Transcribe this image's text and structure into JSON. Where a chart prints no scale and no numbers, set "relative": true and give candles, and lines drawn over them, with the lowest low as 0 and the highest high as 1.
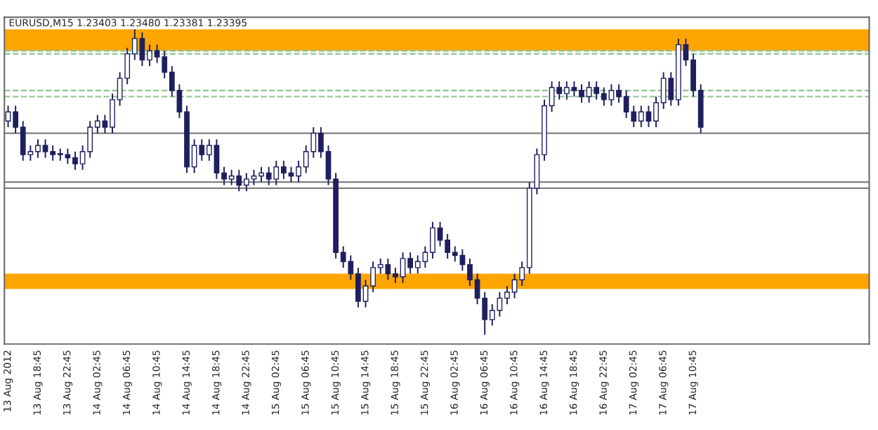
{
  "chart_data": {
    "type": "candlestick",
    "title": "EURUSD,M15 1.23403 1.23480 1.23381 1.23395",
    "relative": true,
    "color": "#1f1f5f",
    "grid": false,
    "categories": [
      "13 Aug 2012",
      null,
      null,
      null,
      "13 Aug 18:45",
      null,
      null,
      null,
      "13 Aug 22:45",
      null,
      null,
      null,
      "14 Aug 02:45",
      null,
      null,
      null,
      "14 Aug 06:45",
      null,
      null,
      null,
      "14 Aug 10:45",
      null,
      null,
      null,
      "14 Aug 14:45",
      null,
      null,
      null,
      "14 Aug 18:45",
      null,
      null,
      null,
      "14 Aug 22:45",
      null,
      null,
      null,
      "15 Aug 02:45",
      null,
      null,
      null,
      "15 Aug 06:45",
      null,
      null,
      null,
      "15 Aug 10:45",
      null,
      null,
      null,
      "15 Aug 14:45",
      null,
      null,
      null,
      "15 Aug 18:45",
      null,
      null,
      null,
      "15 Aug 22:45",
      null,
      null,
      null,
      "16 Aug 02:45",
      null,
      null,
      null,
      "16 Aug 06:45",
      null,
      null,
      null,
      "16 Aug 10:45",
      null,
      null,
      null,
      "16 Aug 14:45",
      null,
      null,
      null,
      "16 Aug 18:45",
      null,
      null,
      null,
      "16 Aug 22:45",
      null,
      null,
      null,
      "17 Aug 02:45",
      null,
      null,
      null,
      "17 Aug 06:45",
      null,
      null,
      null,
      "17 Aug 10:45",
      null
    ],
    "ohlc": [
      [
        0.7,
        0.75,
        0.68,
        0.73
      ],
      [
        0.73,
        0.75,
        0.66,
        0.68
      ],
      [
        0.68,
        0.7,
        0.57,
        0.59
      ],
      [
        0.59,
        0.62,
        0.57,
        0.6
      ],
      [
        0.6,
        0.64,
        0.58,
        0.62
      ],
      [
        0.62,
        0.64,
        0.58,
        0.6
      ],
      [
        0.6,
        0.62,
        0.57,
        0.59
      ],
      [
        0.59,
        0.61,
        0.57,
        0.59
      ],
      [
        0.59,
        0.61,
        0.56,
        0.58
      ],
      [
        0.58,
        0.6,
        0.54,
        0.56
      ],
      [
        0.56,
        0.62,
        0.54,
        0.6
      ],
      [
        0.6,
        0.7,
        0.58,
        0.68
      ],
      [
        0.68,
        0.72,
        0.66,
        0.7
      ],
      [
        0.7,
        0.72,
        0.66,
        0.68
      ],
      [
        0.68,
        0.79,
        0.66,
        0.77
      ],
      [
        0.77,
        0.86,
        0.75,
        0.84
      ],
      [
        0.84,
        0.94,
        0.82,
        0.92
      ],
      [
        0.92,
        1.0,
        0.9,
        0.97
      ],
      [
        0.97,
        0.99,
        0.88,
        0.9
      ],
      [
        0.9,
        0.95,
        0.88,
        0.93
      ],
      [
        0.93,
        0.95,
        0.89,
        0.91
      ],
      [
        0.91,
        0.93,
        0.84,
        0.86
      ],
      [
        0.86,
        0.88,
        0.78,
        0.8
      ],
      [
        0.8,
        0.82,
        0.71,
        0.73
      ],
      [
        0.73,
        0.75,
        0.53,
        0.55
      ],
      [
        0.55,
        0.64,
        0.53,
        0.62
      ],
      [
        0.62,
        0.64,
        0.57,
        0.59
      ],
      [
        0.59,
        0.64,
        0.57,
        0.62
      ],
      [
        0.62,
        0.64,
        0.51,
        0.53
      ],
      [
        0.53,
        0.55,
        0.49,
        0.51
      ],
      [
        0.51,
        0.54,
        0.49,
        0.52
      ],
      [
        0.52,
        0.54,
        0.47,
        0.49
      ],
      [
        0.49,
        0.53,
        0.47,
        0.51
      ],
      [
        0.51,
        0.54,
        0.49,
        0.52
      ],
      [
        0.52,
        0.55,
        0.5,
        0.53
      ],
      [
        0.53,
        0.55,
        0.49,
        0.51
      ],
      [
        0.51,
        0.57,
        0.49,
        0.55
      ],
      [
        0.55,
        0.57,
        0.51,
        0.53
      ],
      [
        0.53,
        0.55,
        0.5,
        0.52
      ],
      [
        0.52,
        0.57,
        0.5,
        0.55
      ],
      [
        0.55,
        0.62,
        0.53,
        0.6
      ],
      [
        0.6,
        0.68,
        0.58,
        0.66
      ],
      [
        0.66,
        0.68,
        0.58,
        0.6
      ],
      [
        0.6,
        0.62,
        0.49,
        0.51
      ],
      [
        0.51,
        0.53,
        0.25,
        0.27
      ],
      [
        0.27,
        0.29,
        0.22,
        0.24
      ],
      [
        0.24,
        0.26,
        0.18,
        0.2
      ],
      [
        0.2,
        0.22,
        0.09,
        0.11
      ],
      [
        0.11,
        0.18,
        0.09,
        0.16
      ],
      [
        0.16,
        0.24,
        0.14,
        0.22
      ],
      [
        0.22,
        0.25,
        0.2,
        0.23
      ],
      [
        0.23,
        0.25,
        0.18,
        0.2
      ],
      [
        0.2,
        0.22,
        0.17,
        0.19
      ],
      [
        0.19,
        0.27,
        0.17,
        0.25
      ],
      [
        0.25,
        0.27,
        0.2,
        0.22
      ],
      [
        0.22,
        0.26,
        0.2,
        0.24
      ],
      [
        0.24,
        0.29,
        0.22,
        0.27
      ],
      [
        0.27,
        0.37,
        0.25,
        0.35
      ],
      [
        0.35,
        0.37,
        0.29,
        0.31
      ],
      [
        0.31,
        0.33,
        0.25,
        0.27
      ],
      [
        0.27,
        0.29,
        0.24,
        0.26
      ],
      [
        0.26,
        0.28,
        0.21,
        0.23
      ],
      [
        0.23,
        0.25,
        0.16,
        0.18
      ],
      [
        0.18,
        0.2,
        0.1,
        0.12
      ],
      [
        0.12,
        0.14,
        0.0,
        0.05
      ],
      [
        0.05,
        0.1,
        0.03,
        0.08
      ],
      [
        0.08,
        0.14,
        0.06,
        0.12
      ],
      [
        0.12,
        0.16,
        0.1,
        0.14
      ],
      [
        0.14,
        0.2,
        0.12,
        0.18
      ],
      [
        0.18,
        0.24,
        0.16,
        0.22
      ],
      [
        0.22,
        0.5,
        0.2,
        0.48
      ],
      [
        0.48,
        0.61,
        0.46,
        0.59
      ],
      [
        0.59,
        0.77,
        0.57,
        0.75
      ],
      [
        0.75,
        0.83,
        0.73,
        0.81
      ],
      [
        0.81,
        0.83,
        0.77,
        0.79
      ],
      [
        0.79,
        0.83,
        0.77,
        0.81
      ],
      [
        0.81,
        0.83,
        0.78,
        0.8
      ],
      [
        0.8,
        0.82,
        0.76,
        0.78
      ],
      [
        0.78,
        0.83,
        0.76,
        0.81
      ],
      [
        0.81,
        0.83,
        0.77,
        0.79
      ],
      [
        0.79,
        0.81,
        0.75,
        0.77
      ],
      [
        0.77,
        0.82,
        0.75,
        0.8
      ],
      [
        0.8,
        0.82,
        0.76,
        0.78
      ],
      [
        0.78,
        0.8,
        0.71,
        0.73
      ],
      [
        0.73,
        0.75,
        0.68,
        0.7
      ],
      [
        0.7,
        0.75,
        0.68,
        0.73
      ],
      [
        0.73,
        0.75,
        0.68,
        0.7
      ],
      [
        0.7,
        0.78,
        0.68,
        0.76
      ],
      [
        0.76,
        0.86,
        0.74,
        0.84
      ],
      [
        0.84,
        0.86,
        0.75,
        0.77
      ],
      [
        0.77,
        0.97,
        0.75,
        0.95
      ],
      [
        0.95,
        0.97,
        0.88,
        0.9
      ],
      [
        0.9,
        0.92,
        0.78,
        0.8
      ],
      [
        0.8,
        0.82,
        0.66,
        0.68
      ]
    ],
    "ref_lines": [
      {
        "axis": "y",
        "value": 0.66,
        "color": "#808080",
        "line_style": "solid"
      },
      {
        "axis": "y",
        "value": 0.5,
        "color": "#808080",
        "line_style": "solid"
      },
      {
        "axis": "y",
        "value": 0.48,
        "color": "#808080",
        "line_style": "solid"
      },
      {
        "axis": "y",
        "value": 0.93,
        "color": "#8fc48f",
        "line_style": "dashed"
      },
      {
        "axis": "y",
        "value": 0.92,
        "color": "#8fc48f",
        "line_style": "dashed"
      },
      {
        "axis": "y",
        "value": 0.8,
        "color": "#8fc48f",
        "line_style": "dashed"
      },
      {
        "axis": "y",
        "value": 0.78,
        "color": "#8fc48f",
        "line_style": "dashed"
      }
    ],
    "bands": [
      {
        "axis": "y",
        "from": 0.93,
        "to": 1.0,
        "color": "#ffa500"
      },
      {
        "axis": "y",
        "from": 0.15,
        "to": 0.2,
        "color": "#ffa500"
      }
    ]
  }
}
